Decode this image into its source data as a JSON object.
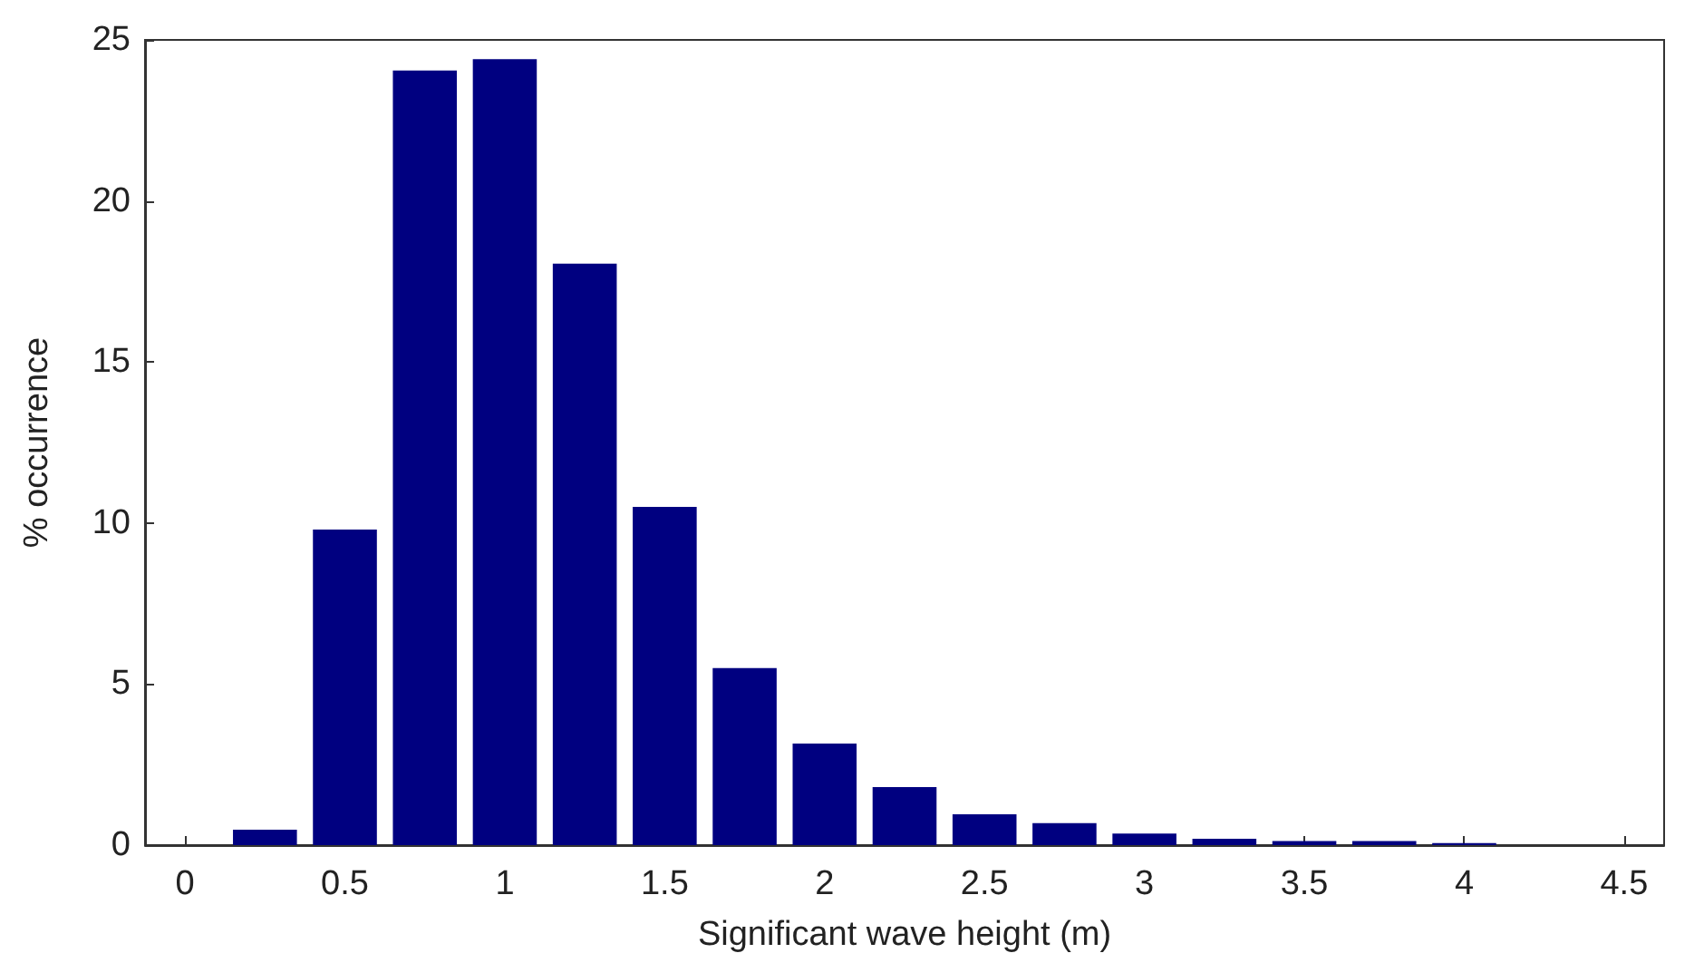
{
  "chart_data": {
    "type": "bar",
    "xlabel": "Significant wave height (m)",
    "ylabel": "% occurrence",
    "x": [
      0.25,
      0.5,
      0.75,
      1,
      1.25,
      1.5,
      1.75,
      2,
      2.25,
      2.5,
      2.75,
      3,
      3.25,
      3.5,
      3.75,
      4
    ],
    "values": [
      0.48,
      9.8,
      24.05,
      24.4,
      18.05,
      10.5,
      5.5,
      3.15,
      1.8,
      0.96,
      0.68,
      0.36,
      0.2,
      0.13,
      0.13,
      0.06
    ],
    "color": "#000080",
    "xlim": [
      -0.125,
      4.625
    ],
    "xticks": [
      0,
      0.5,
      1,
      1.5,
      2,
      2.5,
      3,
      3.5,
      4,
      4.5
    ],
    "ylim": [
      0,
      25
    ],
    "yticks": [
      0,
      5,
      10,
      15,
      20,
      25
    ],
    "grid": false
  }
}
